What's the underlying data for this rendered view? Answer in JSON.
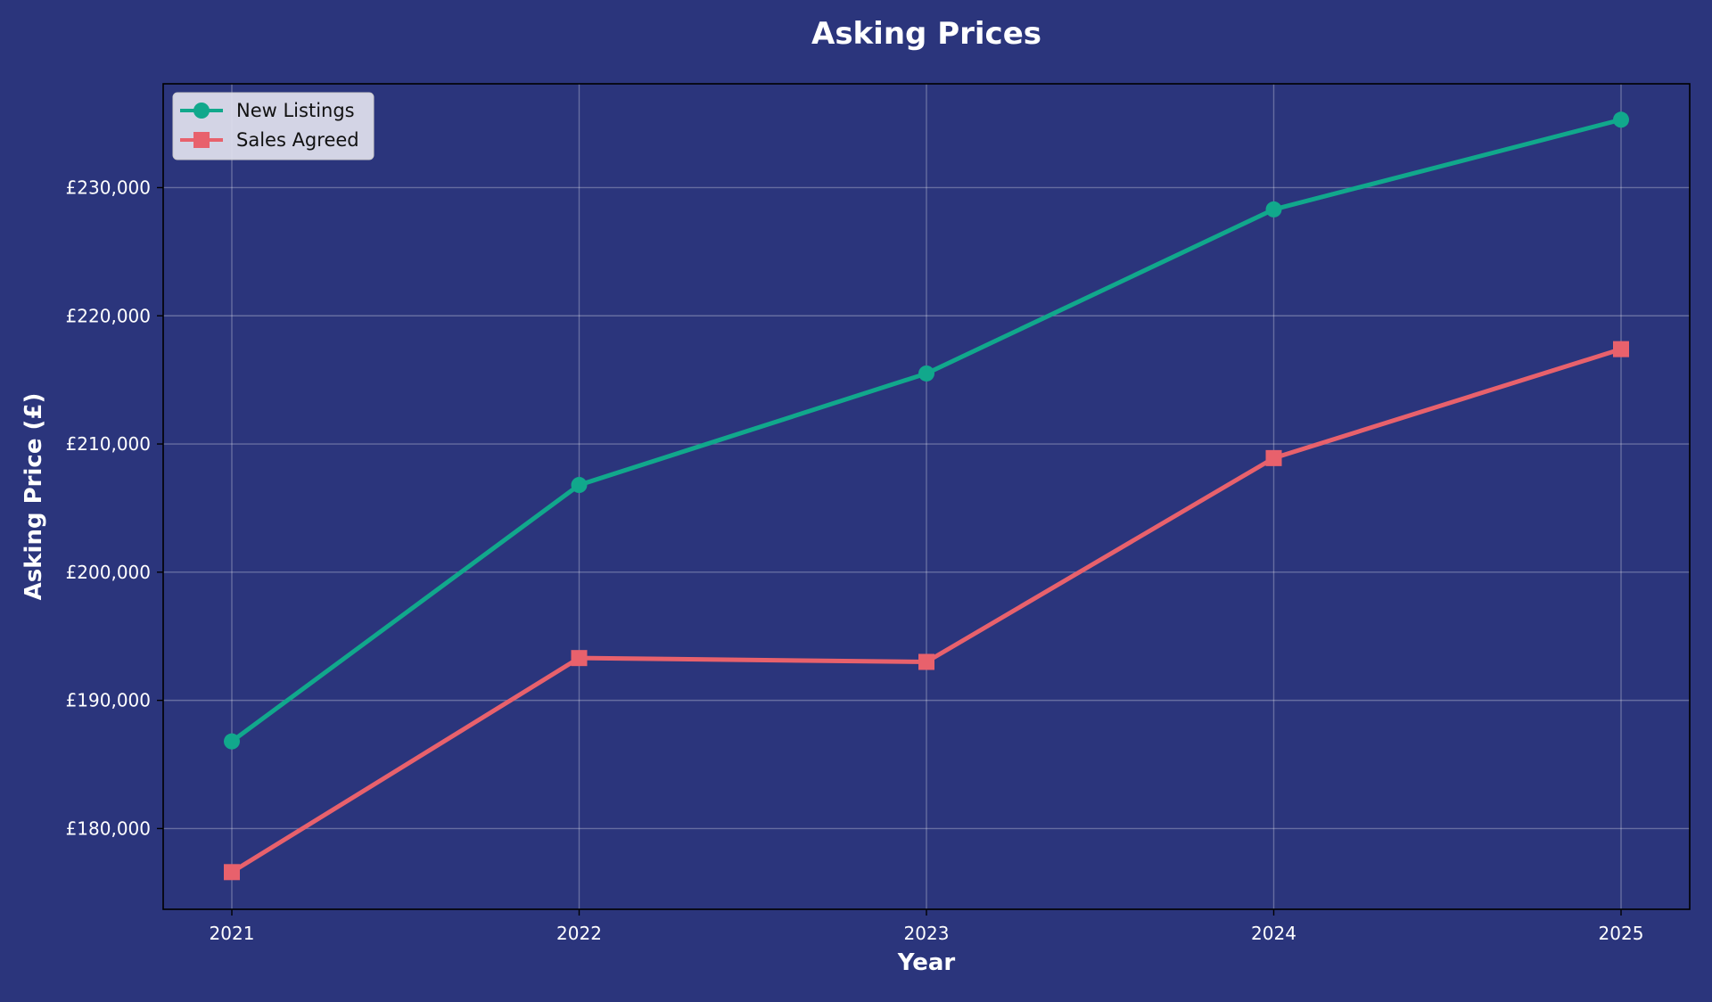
{
  "chart_data": {
    "type": "line",
    "title": "Asking Prices",
    "xlabel": "Year",
    "ylabel": "Asking Price (£)",
    "categories": [
      "2021",
      "2022",
      "2023",
      "2024",
      "2025"
    ],
    "y_ticks": [
      180000,
      190000,
      200000,
      210000,
      220000,
      230000
    ],
    "y_tick_labels": [
      "£180,000",
      "£190,000",
      "£200,000",
      "£210,000",
      "£220,000",
      "£230,000"
    ],
    "ylim": [
      173700,
      238100
    ],
    "grid": true,
    "legend_position": "upper-left",
    "series": [
      {
        "name": "New Listings",
        "values": [
          186800,
          206800,
          215500,
          228300,
          235300
        ],
        "color": "#11a88c",
        "marker": "circle"
      },
      {
        "name": "Sales Agreed",
        "values": [
          176600,
          193300,
          193000,
          208900,
          217400
        ],
        "color": "#e8616c",
        "marker": "square"
      }
    ],
    "colors": {
      "background": "#2b357c",
      "text": "#ffffff",
      "grid": "#ffffff",
      "legend_bg": "#e2e2ee",
      "legend_text": "#111111"
    }
  }
}
